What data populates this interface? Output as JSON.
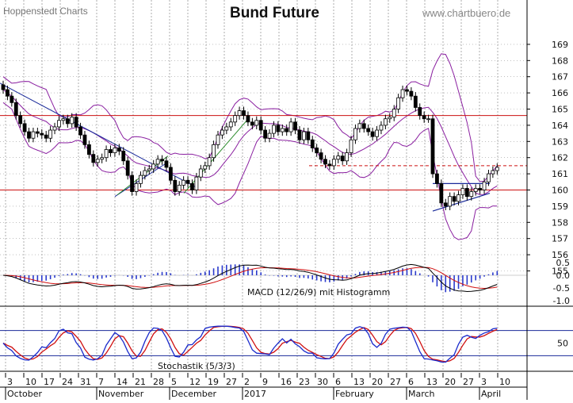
{
  "header": {
    "source": "Hoppenstedt Charts",
    "title": "Bund Future",
    "website": "www.chartbuero.de"
  },
  "colors": {
    "grid": "#9a9a9a",
    "bollinger": "#8a1fa0",
    "candle": "#000000",
    "resistance": "#cc1111",
    "trend_blue": "#1a2a9a",
    "trend_green": "#2a8a2a",
    "macd_line": "#000000",
    "signal_line": "#d01010",
    "histogram": "#2a3acc",
    "stoch_k": "#1a2acc",
    "stoch_d": "#d01010"
  },
  "chart_data": [
    {
      "type": "candlestick",
      "title": "Bund Future",
      "ylim": [
        154.3,
        170
      ],
      "y_ticks": [
        "155",
        "156",
        "157",
        "158",
        "159",
        "160",
        "161",
        "162",
        "163",
        "164",
        "165",
        "166",
        "167",
        "168",
        "169"
      ],
      "x_tick_labels": [
        "3",
        "10",
        "17",
        "24",
        "31",
        "7",
        "14",
        "21",
        "28",
        "5",
        "12",
        "19",
        "27",
        "2",
        "9",
        "16",
        "23",
        "30",
        "6",
        "13",
        "20",
        "27",
        "6",
        "13",
        "20",
        "27",
        "3",
        "10"
      ],
      "month_labels": [
        "October",
        "November",
        "December",
        "2017",
        "February",
        "March",
        "April"
      ],
      "close": [
        166.2,
        165.8,
        165.4,
        164.6,
        164.1,
        163.6,
        163.2,
        163.6,
        163.5,
        163.4,
        163.2,
        163.7,
        163.9,
        164.3,
        164.4,
        164.1,
        164.5,
        163.9,
        163.4,
        162.8,
        162.2,
        161.7,
        161.9,
        162.0,
        162.5,
        162.3,
        162.6,
        162.4,
        161.8,
        160.9,
        159.9,
        160.4,
        160.9,
        161.2,
        161.3,
        161.6,
        161.9,
        161.8,
        161.4,
        160.6,
        159.9,
        160.3,
        160.6,
        160.4,
        160.0,
        160.8,
        161.3,
        161.5,
        162.0,
        162.8,
        163.4,
        163.7,
        163.9,
        164.2,
        164.6,
        164.9,
        164.6,
        164.2,
        164.0,
        164.3,
        163.7,
        163.2,
        163.5,
        164.0,
        163.6,
        163.8,
        163.6,
        164.2,
        163.7,
        163.1,
        163.6,
        163.1,
        162.6,
        162.3,
        161.9,
        161.6,
        161.5,
        161.9,
        162.1,
        161.8,
        162.3,
        163.1,
        163.8,
        164.1,
        163.8,
        163.6,
        163.3,
        163.7,
        164.0,
        164.4,
        164.5,
        165.0,
        165.7,
        166.2,
        166.1,
        165.8,
        165.1,
        164.6,
        164.4,
        164.4,
        161.0,
        160.4,
        159.2,
        159.0,
        159.6,
        159.3,
        159.7,
        160.1,
        159.6,
        159.9,
        160.1,
        160.0,
        160.5,
        161.0,
        161.2,
        161.4
      ],
      "resistance_levels": [
        164.6,
        160.0
      ],
      "dashed_level": 161.5
    },
    {
      "type": "line",
      "title": "MACD (12/26/9) mit Histogramm",
      "ylim": [
        -1.1,
        0.7
      ],
      "y_ticks": [
        "0.5",
        "0.0",
        "-0.5",
        "-1.0"
      ]
    },
    {
      "type": "line",
      "title": "Stochastik (5/3/3)",
      "ylim": [
        -5,
        105
      ],
      "y_ticks": [
        "50"
      ]
    }
  ]
}
